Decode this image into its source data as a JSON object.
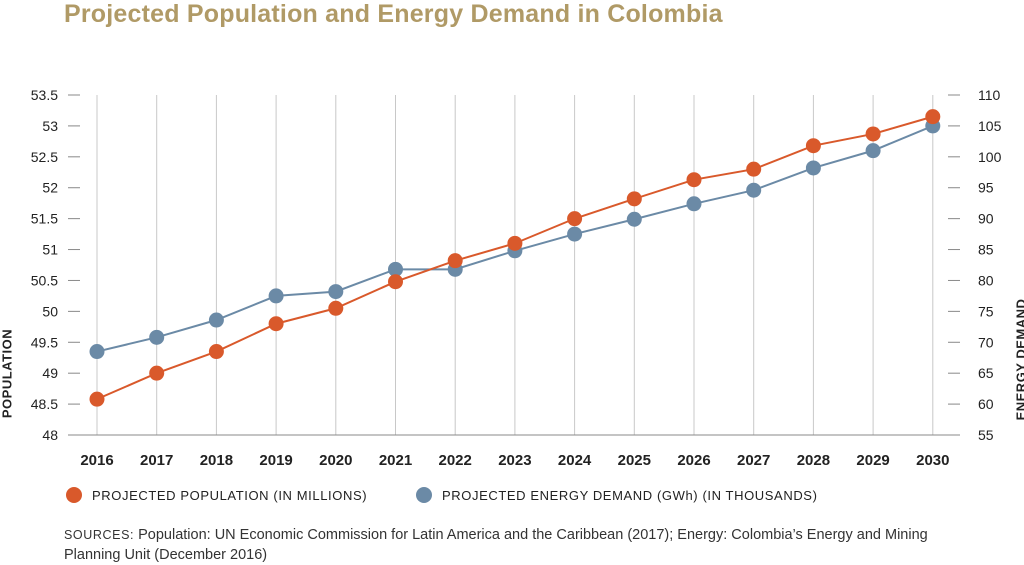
{
  "title": "Projected Population and Energy Demand in Colombia",
  "colors": {
    "population": "#d9592b",
    "energy": "#6b8aa6",
    "title": "#b09a66",
    "grid": "#c8c8c8"
  },
  "chart_data": {
    "type": "line",
    "title": "Projected Population and Energy Demand in Colombia",
    "x": [
      "2016",
      "2017",
      "2018",
      "2019",
      "2020",
      "2021",
      "2022",
      "2023",
      "2024",
      "2025",
      "2026",
      "2027",
      "2028",
      "2029",
      "2030"
    ],
    "ylabel": "POPULATION",
    "y2label": "ENERGY DEMAND",
    "ylim": [
      48,
      53.5
    ],
    "y2lim": [
      55,
      110
    ],
    "yticks": [
      "48",
      "48.5",
      "49",
      "49.5",
      "50",
      "50.5",
      "51",
      "51.5",
      "52",
      "52.5",
      "53",
      "53.5"
    ],
    "y2ticks": [
      "55",
      "60",
      "65",
      "70",
      "75",
      "80",
      "85",
      "90",
      "95",
      "100",
      "105",
      "110"
    ],
    "grid": "vertical",
    "legend": "bottom",
    "series": [
      {
        "name": "PROJECTED POPULATION (IN MILLIONS)",
        "axis": "left",
        "values": [
          48.58,
          49.0,
          49.35,
          49.8,
          50.05,
          50.48,
          50.82,
          51.1,
          51.5,
          51.82,
          52.13,
          52.3,
          52.68,
          52.87,
          53.15
        ]
      },
      {
        "name": "PROJECTED ENERGY DEMAND (GWh) (IN THOUSANDS)",
        "axis": "right",
        "values": [
          68.5,
          70.8,
          73.6,
          77.5,
          78.2,
          81.8,
          81.8,
          84.8,
          87.5,
          89.9,
          92.4,
          94.6,
          98.2,
          101.0,
          105.0
        ]
      }
    ]
  },
  "sources": {
    "label": "SOURCES:",
    "text": "Population: UN Economic Commission for Latin America and the Caribbean (2017); Energy: Colombia’s Energy and Mining Planning Unit (December 2016)"
  }
}
